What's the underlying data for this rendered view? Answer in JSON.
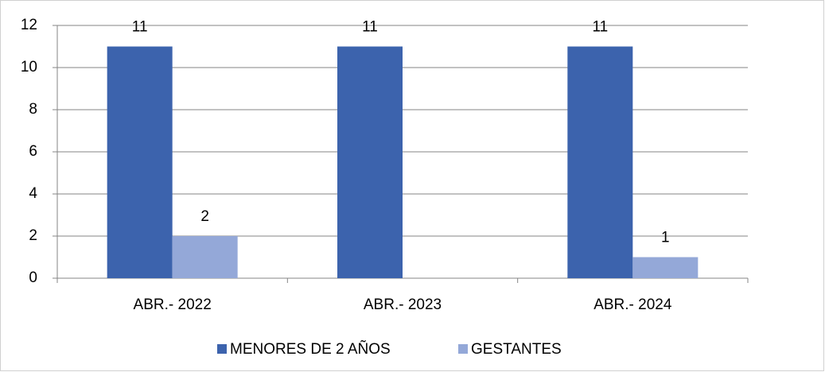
{
  "chart_data": {
    "type": "bar",
    "categories": [
      "ABR.- 2022",
      "ABR.- 2023",
      "ABR.- 2024"
    ],
    "series": [
      {
        "name": "MENORES DE 2 AÑOS",
        "color": "#3c63ad",
        "values": [
          11,
          11,
          11
        ]
      },
      {
        "name": "GESTANTES",
        "color": "#94a8d8",
        "values": [
          2,
          null,
          1
        ]
      }
    ],
    "ylim": [
      0,
      12
    ],
    "yticks": [
      0,
      2,
      4,
      6,
      8,
      10,
      12
    ],
    "grid": true,
    "legend": "bottom"
  }
}
